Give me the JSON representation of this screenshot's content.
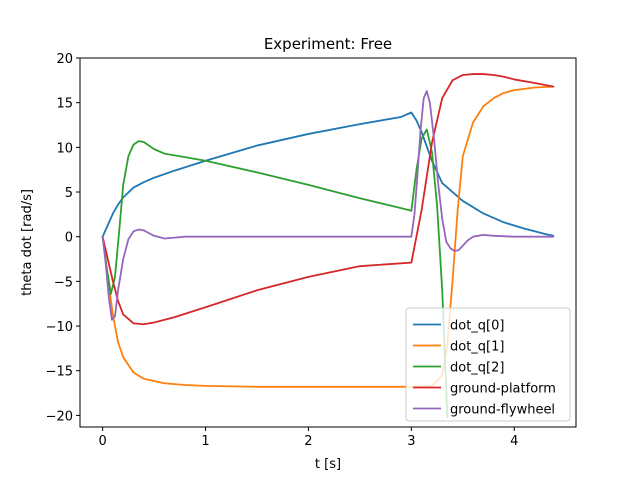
{
  "chart_data": {
    "type": "line",
    "title": "Experiment: Free",
    "xlabel": "t [s]",
    "ylabel": "theta dot [rad/s]",
    "xlim": [
      -0.22,
      4.6
    ],
    "ylim": [
      -21.3,
      20.0
    ],
    "xticks": [
      0,
      1,
      2,
      3,
      4
    ],
    "yticks": [
      -20,
      -15,
      -10,
      -5,
      0,
      5,
      10,
      15,
      20
    ],
    "grid": false,
    "legend_position": "lower right",
    "series": [
      {
        "name": "dot_q[0]",
        "color": "#1f77b4",
        "x": [
          0,
          0.05,
          0.1,
          0.15,
          0.2,
          0.3,
          0.4,
          0.5,
          0.7,
          1.0,
          1.5,
          2.0,
          2.5,
          2.9,
          3.0,
          3.05,
          3.1,
          3.2,
          3.3,
          3.5,
          3.7,
          3.9,
          4.1,
          4.3,
          4.38
        ],
        "y": [
          0,
          1.3,
          2.6,
          3.6,
          4.4,
          5.5,
          6.1,
          6.6,
          7.4,
          8.5,
          10.2,
          11.5,
          12.6,
          13.4,
          13.9,
          13.0,
          11.7,
          8.5,
          6.0,
          4.0,
          2.6,
          1.6,
          0.9,
          0.3,
          0.1
        ]
      },
      {
        "name": "dot_q[1]",
        "color": "#ff7f0e",
        "x": [
          0,
          0.05,
          0.1,
          0.15,
          0.2,
          0.3,
          0.4,
          0.6,
          0.8,
          1.0,
          1.5,
          2.0,
          2.5,
          3.0,
          3.2,
          3.3,
          3.35,
          3.4,
          3.45,
          3.5,
          3.6,
          3.7,
          3.8,
          3.9,
          4.0,
          4.2,
          4.38
        ],
        "y": [
          0,
          -4.5,
          -8.8,
          -11.8,
          -13.5,
          -15.2,
          -15.9,
          -16.4,
          -16.6,
          -16.7,
          -16.8,
          -16.8,
          -16.8,
          -16.8,
          -16.7,
          -15.5,
          -12.0,
          -5.0,
          3.0,
          9.0,
          12.8,
          14.6,
          15.5,
          16.1,
          16.4,
          16.7,
          16.8
        ]
      },
      {
        "name": "dot_q[2]",
        "color": "#2ca02c",
        "x": [
          0,
          0.04,
          0.08,
          0.12,
          0.16,
          0.2,
          0.25,
          0.3,
          0.35,
          0.4,
          0.45,
          0.5,
          0.6,
          0.7,
          0.8,
          1.0,
          1.5,
          2.0,
          2.5,
          2.9,
          3.0,
          3.05,
          3.1,
          3.15,
          3.2,
          3.25,
          3.3,
          3.35
        ],
        "y": [
          0,
          -3.5,
          -6.4,
          -4.5,
          0.5,
          5.8,
          9.0,
          10.3,
          10.7,
          10.6,
          10.2,
          9.8,
          9.3,
          9.1,
          8.9,
          8.5,
          7.2,
          5.8,
          4.3,
          3.2,
          2.9,
          7.5,
          11.0,
          12.0,
          9.5,
          3.5,
          -6.0,
          -20.2
        ]
      },
      {
        "name": "ground-platform",
        "color": "#d62728",
        "x": [
          0,
          0.05,
          0.1,
          0.15,
          0.2,
          0.3,
          0.4,
          0.5,
          0.7,
          1.0,
          1.5,
          2.0,
          2.5,
          3.0,
          3.1,
          3.2,
          3.3,
          3.4,
          3.5,
          3.6,
          3.7,
          3.8,
          3.9,
          4.0,
          4.2,
          4.38
        ],
        "y": [
          0,
          -2.5,
          -5.0,
          -7.2,
          -8.7,
          -9.7,
          -9.8,
          -9.6,
          -9.0,
          -7.9,
          -6.0,
          -4.5,
          -3.3,
          -2.9,
          3.0,
          10.5,
          15.5,
          17.5,
          18.1,
          18.2,
          18.2,
          18.1,
          17.9,
          17.6,
          17.2,
          16.8
        ]
      },
      {
        "name": "ground-flywheel",
        "color": "#9467bd",
        "x": [
          0,
          0.03,
          0.06,
          0.09,
          0.12,
          0.15,
          0.2,
          0.25,
          0.3,
          0.35,
          0.4,
          0.45,
          0.5,
          0.6,
          0.7,
          0.8,
          1.0,
          2.0,
          3.0,
          3.03,
          3.06,
          3.09,
          3.12,
          3.15,
          3.18,
          3.22,
          3.26,
          3.3,
          3.34,
          3.38,
          3.42,
          3.46,
          3.5,
          3.55,
          3.6,
          3.7,
          3.8,
          4.0,
          4.2,
          4.38
        ],
        "y": [
          0,
          -3.0,
          -6.8,
          -9.3,
          -8.9,
          -6.0,
          -2.5,
          -0.3,
          0.6,
          0.8,
          0.7,
          0.4,
          0.1,
          -0.2,
          -0.1,
          0.0,
          0.0,
          0.0,
          0.0,
          2.5,
          7.0,
          12.0,
          15.5,
          16.3,
          15.0,
          11.0,
          6.0,
          2.0,
          -0.6,
          -1.3,
          -1.6,
          -1.5,
          -1.0,
          -0.4,
          0.0,
          0.2,
          0.1,
          0.0,
          0.0,
          0.0
        ]
      }
    ]
  }
}
